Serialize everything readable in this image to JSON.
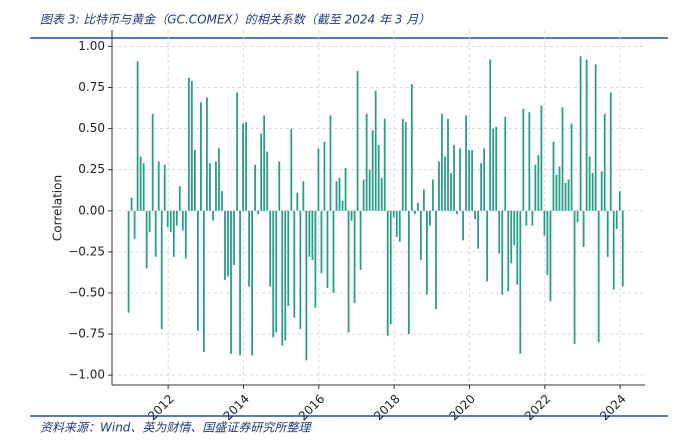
{
  "header": {
    "title": "图表 3: 比特币与黄金（GC.COMEX）的相关系数（截至 2024 年 3 月）"
  },
  "footer": {
    "source": "资料来源：Wind、英为财情、国盛证券研究所整理"
  },
  "chart_data": {
    "type": "bar",
    "y_label": "Correlation",
    "color": "#2a9d8a",
    "grid": true,
    "xlim": [
      2010.51,
      2024.66
    ],
    "ylim": [
      -1.06,
      1.1
    ],
    "xticks": [
      2012,
      2014,
      2016,
      2018,
      2020,
      2022,
      2024
    ],
    "yticks": [
      {
        "value": -1,
        "label": "−1.00"
      },
      {
        "value": -0.75,
        "label": "−0.75"
      },
      {
        "value": -0.5,
        "label": "−0.50"
      },
      {
        "value": -0.25,
        "label": "−0.25"
      },
      {
        "value": 0,
        "label": "0.00"
      },
      {
        "value": 0.25,
        "label": "0.25"
      },
      {
        "value": 0.5,
        "label": "0.50"
      },
      {
        "value": 0.75,
        "label": "0.75"
      },
      {
        "value": 1,
        "label": "1.00"
      }
    ],
    "x": [
      2010.95,
      2011.03,
      2011.11,
      2011.19,
      2011.27,
      2011.35,
      2011.43,
      2011.51,
      2011.59,
      2011.67,
      2011.75,
      2011.83,
      2011.91,
      2011.99,
      2012.07,
      2012.15,
      2012.23,
      2012.31,
      2012.39,
      2012.47,
      2012.55,
      2012.63,
      2012.71,
      2012.79,
      2012.87,
      2012.95,
      2013.03,
      2013.11,
      2013.19,
      2013.27,
      2013.35,
      2013.43,
      2013.51,
      2013.59,
      2013.67,
      2013.75,
      2013.83,
      2013.91,
      2013.99,
      2014.07,
      2014.15,
      2014.23,
      2014.31,
      2014.39,
      2014.47,
      2014.55,
      2014.63,
      2014.71,
      2014.79,
      2014.87,
      2014.95,
      2015.03,
      2015.11,
      2015.19,
      2015.27,
      2015.35,
      2015.43,
      2015.51,
      2015.59,
      2015.67,
      2015.75,
      2015.83,
      2015.91,
      2015.99,
      2016.07,
      2016.15,
      2016.23,
      2016.31,
      2016.39,
      2016.47,
      2016.55,
      2016.63,
      2016.71,
      2016.79,
      2016.87,
      2016.95,
      2017.03,
      2017.11,
      2017.19,
      2017.27,
      2017.35,
      2017.43,
      2017.51,
      2017.59,
      2017.67,
      2017.75,
      2017.83,
      2017.91,
      2017.99,
      2018.07,
      2018.15,
      2018.23,
      2018.31,
      2018.39,
      2018.47,
      2018.55,
      2018.63,
      2018.71,
      2018.79,
      2018.87,
      2018.95,
      2019.03,
      2019.11,
      2019.19,
      2019.27,
      2019.35,
      2019.43,
      2019.51,
      2019.59,
      2019.67,
      2019.75,
      2019.83,
      2019.91,
      2019.99,
      2020.07,
      2020.15,
      2020.23,
      2020.31,
      2020.39,
      2020.47,
      2020.55,
      2020.63,
      2020.71,
      2020.79,
      2020.87,
      2020.95,
      2021.03,
      2021.11,
      2021.19,
      2021.27,
      2021.35,
      2021.43,
      2021.51,
      2021.59,
      2021.67,
      2021.75,
      2021.83,
      2021.91,
      2021.99,
      2022.07,
      2022.15,
      2022.23,
      2022.31,
      2022.39,
      2022.47,
      2022.55,
      2022.63,
      2022.71,
      2022.79,
      2022.87,
      2022.95,
      2023.03,
      2023.11,
      2023.19,
      2023.27,
      2023.35,
      2023.43,
      2023.51,
      2023.59,
      2023.67,
      2023.75,
      2023.83,
      2023.91,
      2023.99,
      2024.07
    ],
    "values": [
      -0.62,
      0.08,
      -0.17,
      0.91,
      0.33,
      0.29,
      -0.35,
      -0.13,
      0.59,
      -0.28,
      0.3,
      -0.72,
      0.28,
      -0.1,
      -0.13,
      -0.28,
      -0.09,
      0.15,
      -0.12,
      -0.29,
      0.81,
      0.79,
      0.37,
      -0.73,
      0.66,
      -0.86,
      0.69,
      0.29,
      -0.06,
      0.3,
      0.38,
      0.12,
      -0.42,
      -0.4,
      -0.87,
      -0.33,
      0.72,
      -0.88,
      0.53,
      0.54,
      -0.46,
      -0.88,
      0.28,
      -0.02,
      0.47,
      0.58,
      0.36,
      -0.46,
      -0.77,
      -0.74,
      0.3,
      -0.82,
      -0.79,
      -0.58,
      0.5,
      -0.65,
      0.11,
      -0.72,
      0.18,
      -0.91,
      -0.28,
      -0.3,
      -0.59,
      0.38,
      -0.38,
      0.42,
      -0.47,
      0.58,
      -0.5,
      0.18,
      0.2,
      0.06,
      0.26,
      -0.74,
      -0.06,
      -0.56,
      0.85,
      -0.36,
      0.19,
      0.59,
      0.25,
      0.49,
      0.73,
      0.4,
      0.2,
      0.56,
      -0.76,
      -0.69,
      -0.04,
      -0.16,
      -0.19,
      0.56,
      0.54,
      -0.75,
      0.77,
      -0.02,
      0.05,
      -0.3,
      0.13,
      -0.51,
      -0.09,
      0.19,
      -0.6,
      0.3,
      0.59,
      0.33,
      0.56,
      0.23,
      0.4,
      -0.02,
      0.38,
      -0.18,
      0.58,
      0.37,
      0.37,
      -0.05,
      -0.23,
      0.29,
      0.38,
      -0.43,
      0.92,
      0.5,
      0.51,
      -0.26,
      -0.51,
      0.57,
      -0.49,
      -0.32,
      -0.21,
      -0.45,
      -0.87,
      0.62,
      -0.09,
      0.6,
      -0.09,
      0.28,
      0.34,
      0.64,
      -0.15,
      -0.39,
      -0.55,
      0.42,
      0.22,
      0.27,
      0.63,
      0.17,
      0.19,
      0.53,
      -0.81,
      -0.07,
      0.94,
      -0.22,
      0.92,
      0.33,
      0.23,
      0.89,
      -0.8,
      0.24,
      0.59,
      -0.28,
      0.72,
      -0.48,
      -0.11,
      0.12,
      -0.46
    ]
  }
}
